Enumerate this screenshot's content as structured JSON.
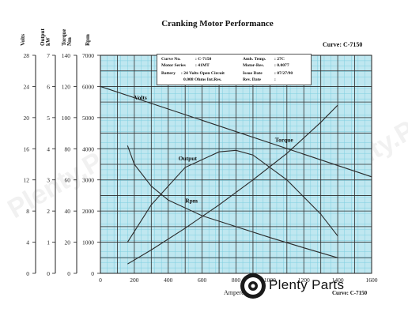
{
  "chart_data": {
    "type": "line",
    "title": "Cranking Motor Performance",
    "curve_label": "Curve: C-7150",
    "xlabel": "Amperes",
    "xlim": [
      0,
      1600
    ],
    "x_ticks": [
      0,
      200,
      400,
      600,
      800,
      1000,
      1200,
      1400,
      1600
    ],
    "axes": [
      {
        "key": "volts",
        "label": "Volts",
        "min": 0,
        "max": 28,
        "ticks": [
          0,
          4,
          8,
          12,
          16,
          20,
          24,
          28
        ]
      },
      {
        "key": "output",
        "label": "Output kW",
        "min": 0,
        "max": 7,
        "ticks": [
          0,
          1,
          2,
          3,
          4,
          5,
          6,
          7
        ]
      },
      {
        "key": "torque",
        "label": "Torque Nm",
        "min": 0,
        "max": 140,
        "ticks": [
          0,
          20,
          40,
          60,
          80,
          100,
          120,
          140
        ]
      },
      {
        "key": "rpm",
        "label": "Rpm",
        "min": 0,
        "max": 7000,
        "ticks": [
          0,
          1000,
          2000,
          3000,
          4000,
          5000,
          6000,
          7000
        ]
      }
    ],
    "grid": true,
    "series": [
      {
        "name": "Volts",
        "axis": "volts",
        "color": "#2a2a2a",
        "x": [
          0,
          1600
        ],
        "y": [
          24,
          12.4
        ]
      },
      {
        "name": "Torque",
        "axis": "torque",
        "color": "#2a2a2a",
        "x": [
          160,
          300,
          500,
          700,
          900,
          1100,
          1300,
          1400
        ],
        "y": [
          6,
          15,
          29,
          44,
          60,
          77,
          97,
          108
        ]
      },
      {
        "name": "Output",
        "axis": "output",
        "color": "#2a2a2a",
        "x": [
          160,
          300,
          500,
          700,
          800,
          900,
          1100,
          1300,
          1400
        ],
        "y": [
          1.0,
          2.2,
          3.4,
          3.9,
          3.95,
          3.8,
          3.0,
          1.9,
          1.2
        ]
      },
      {
        "name": "Rpm",
        "axis": "rpm",
        "color": "#2a2a2a",
        "x": [
          160,
          200,
          300,
          400,
          600,
          800,
          1000,
          1200,
          1400
        ],
        "y": [
          4100,
          3500,
          2800,
          2350,
          1850,
          1500,
          1150,
          820,
          500
        ]
      }
    ],
    "series_labels": [
      {
        "name": "Volts",
        "text": "Volts"
      },
      {
        "name": "Torque",
        "text": "Torque"
      },
      {
        "name": "Output",
        "text": "Output"
      },
      {
        "name": "Rpm",
        "text": "Rpm"
      }
    ]
  },
  "info": {
    "rows": [
      {
        "l1": "Curve No.",
        "v1": ": C-7150",
        "l2": "Amb. Temp.",
        "v2": ": 27C"
      },
      {
        "l1": "Motor Series",
        "v1": ": 41MT",
        "l2": "Motor-Res.",
        "v2": ": 0.0077"
      },
      {
        "l1": "Battery",
        "v1": ": 24 Volts Open Circuit",
        "l2": "Issue Date",
        "v2": ": 07/27/90"
      },
      {
        "l1": "",
        "v1": "0.008 Ohms Int.Res.",
        "l2": "Rev. Date",
        "v2": ":"
      }
    ]
  },
  "watermark": {
    "brand": "Plenty Parts",
    "text": "Plenty.Parts"
  },
  "colors": {
    "grid_bg": "#bfe7f0",
    "grid_minor": "#7fcfe0",
    "grid_major": "#2d2d2d",
    "line": "#2a2a2a"
  }
}
